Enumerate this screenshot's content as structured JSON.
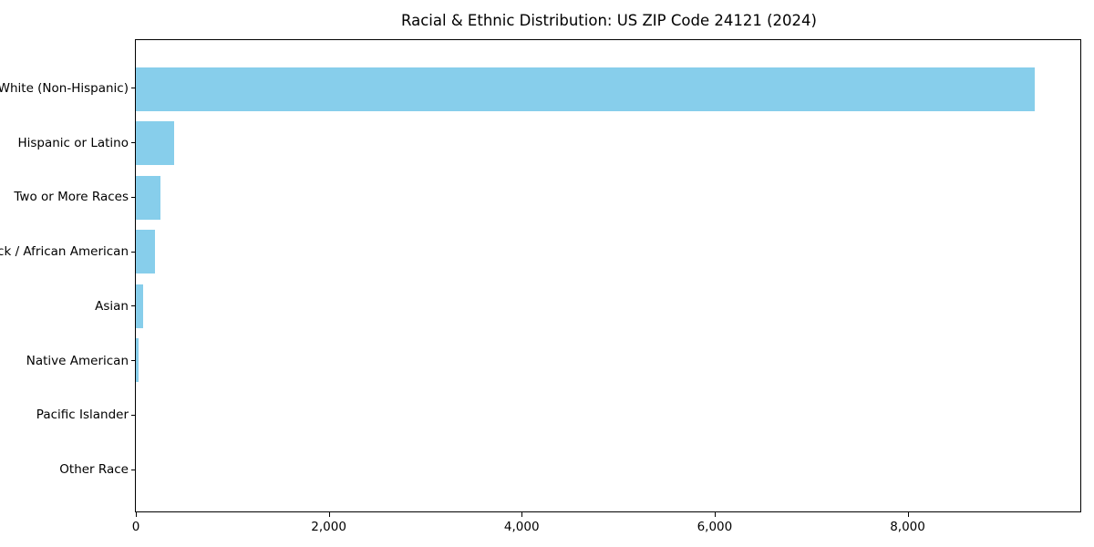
{
  "chart_data": {
    "type": "bar",
    "orientation": "horizontal",
    "title": "Racial & Ethnic Distribution: US ZIP Code 24121 (2024)",
    "categories": [
      "White (Non-Hispanic)",
      "Hispanic or Latino",
      "Two or More Races",
      "Black / African American",
      "Asian",
      "Native American",
      "Pacific Islander",
      "Other Race"
    ],
    "values": [
      9330,
      395,
      260,
      195,
      80,
      25,
      0,
      0
    ],
    "xlabel": "",
    "ylabel": "",
    "xlim": [
      0,
      9800
    ],
    "x_ticks": [
      0,
      2000,
      4000,
      6000,
      8000
    ],
    "x_tick_labels": [
      "0",
      "2,000",
      "4,000",
      "6,000",
      "8,000"
    ],
    "bar_color": "#87ceeb",
    "text_color": "#000000",
    "background_color": "#ffffff",
    "grid": false,
    "legend_position": "none"
  }
}
